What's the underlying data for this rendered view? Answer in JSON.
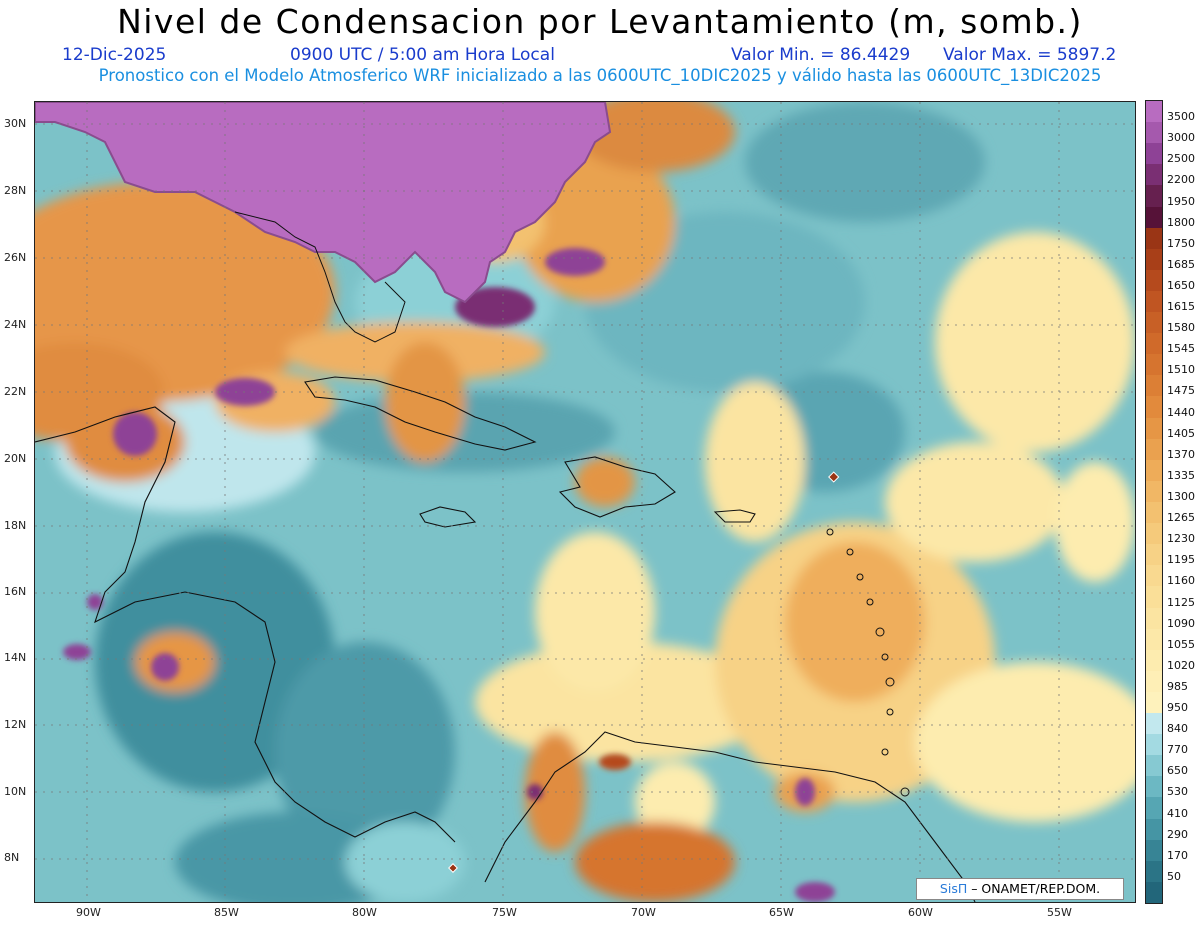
{
  "header": {
    "title": "Nivel de Condensacion por Levantamiento (m, somb.)",
    "date": "12-Dic-2025",
    "time": "0900 UTC / 5:00 am Hora Local",
    "min_label": "Valor Min. = 86.4429",
    "max_label": "Valor Max. = 5897.2",
    "forecast_note": "Pronostico con el Modelo Atmosferico WRF inicializado a las 0600UTC_10DIC2025 y válido hasta las  0600UTC_13DIC2025"
  },
  "map": {
    "lat_labels": [
      "30N",
      "28N",
      "26N",
      "24N",
      "22N",
      "20N",
      "18N",
      "16N",
      "14N",
      "12N",
      "10N",
      "8N"
    ],
    "lon_labels": [
      "90W",
      "85W",
      "80W",
      "75W",
      "70W",
      "65W",
      "60W",
      "55W"
    ]
  },
  "legend": {
    "levels": [
      "3500",
      "3000",
      "2500",
      "2200",
      "1950",
      "1800",
      "1750",
      "1685",
      "1650",
      "1615",
      "1580",
      "1545",
      "1510",
      "1475",
      "1440",
      "1405",
      "1370",
      "1335",
      "1300",
      "1265",
      "1230",
      "1195",
      "1160",
      "1125",
      "1090",
      "1055",
      "1020",
      "985",
      "950",
      "840",
      "770",
      "650",
      "530",
      "410",
      "290",
      "170",
      "50"
    ],
    "colors": [
      "#b86cc0",
      "#a559ad",
      "#8e4296",
      "#7a2f73",
      "#66204f",
      "#561238",
      "#9a3515",
      "#a83f18",
      "#b54a1d",
      "#c05522",
      "#c86026",
      "#d06a2a",
      "#d6742f",
      "#dc7f35",
      "#e28a3c",
      "#e69645",
      "#eaa14f",
      "#eeac59",
      "#f1b765",
      "#f3c170",
      "#f5ca7b",
      "#f7d286",
      "#f9d990",
      "#fadf98",
      "#fbe4a1",
      "#fce8a8",
      "#fdecaf",
      "#feefb6",
      "#fef2bc",
      "#c2e8ee",
      "#a3dae2",
      "#86c9d2",
      "#6cb8c3",
      "#56a6b3",
      "#4595a4",
      "#378495",
      "#2b7486",
      "#22667a"
    ]
  },
  "credit": {
    "logo": "SisΠ",
    "text": " – ONAMET/REP.DOM."
  }
}
